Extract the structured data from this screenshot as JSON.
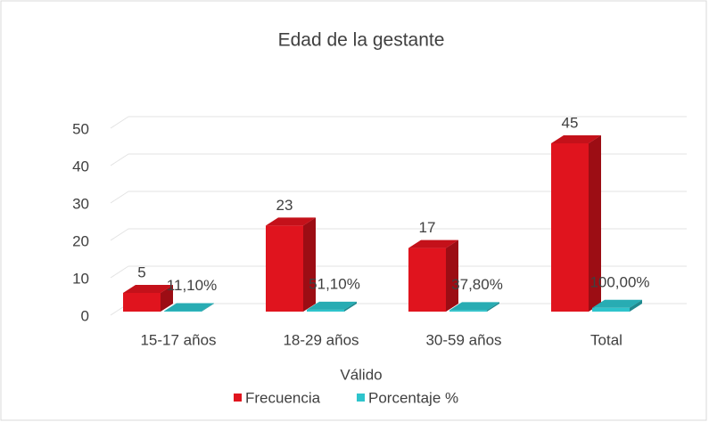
{
  "chart_data": {
    "type": "bar3d",
    "title": "Edad de la gestante",
    "x_label": "Válido",
    "categories": [
      "15-17 años",
      "18-29 años",
      "30-59 años",
      "Total"
    ],
    "series": [
      {
        "name": "Frecuencia",
        "color": "#e0141e",
        "values": [
          5,
          23,
          17,
          45
        ]
      },
      {
        "name": "Porcentaje %",
        "color": "#2ec4cc",
        "values": [
          0.111,
          0.511,
          0.378,
          1.0
        ],
        "value_labels": [
          "11,10%",
          "51,10%",
          "37,80%",
          "100,00%"
        ]
      }
    ],
    "ylim": [
      0,
      50
    ],
    "yticks": [
      0,
      10,
      20,
      30,
      40,
      50
    ],
    "grid": true,
    "legend": "bottom"
  }
}
